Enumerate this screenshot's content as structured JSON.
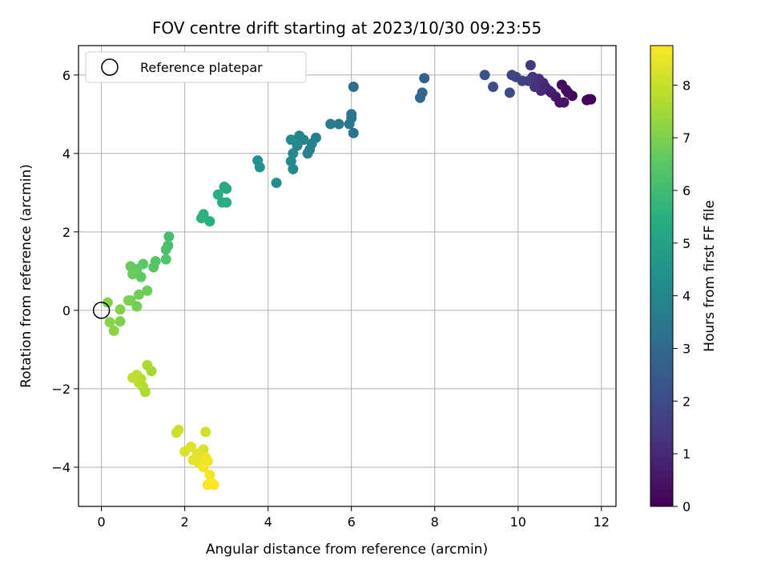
{
  "chart_data": {
    "type": "scatter",
    "title": "FOV centre drift starting at 2023/10/30 09:23:55",
    "xlabel": "Angular distance from reference (arcmin)",
    "ylabel": "Rotation from reference (arcmin)",
    "xlim": [
      -0.55,
      12.35
    ],
    "ylim": [
      -5.0,
      6.75
    ],
    "xticks": [
      "0",
      "2",
      "4",
      "6",
      "8",
      "10",
      "12"
    ],
    "yticks": [
      "−4",
      "−2",
      "0",
      "2",
      "4",
      "6"
    ],
    "grid": true,
    "legend": {
      "position": "top-left",
      "entries": [
        "Reference platepar"
      ]
    },
    "reference_point": {
      "x": 0,
      "y": 0
    },
    "colorbar": {
      "label": "Hours from first FF file",
      "colormap": "viridis",
      "range": [
        0,
        8.75
      ],
      "ticks": [
        "0",
        "1",
        "2",
        "3",
        "4",
        "5",
        "6",
        "7",
        "8"
      ]
    },
    "points": [
      [
        11.75,
        5.38,
        0.02
      ],
      [
        11.7,
        5.38,
        0.06
      ],
      [
        11.65,
        5.36,
        0.1
      ],
      [
        11.3,
        5.47,
        0.18
      ],
      [
        11.2,
        5.55,
        0.25
      ],
      [
        11.15,
        5.62,
        0.3
      ],
      [
        11.05,
        5.75,
        0.35
      ],
      [
        11.1,
        5.3,
        0.4
      ],
      [
        11.0,
        5.3,
        0.45
      ],
      [
        10.9,
        5.45,
        0.55
      ],
      [
        10.8,
        5.55,
        0.65
      ],
      [
        10.75,
        5.6,
        0.75
      ],
      [
        10.65,
        5.7,
        0.85
      ],
      [
        10.6,
        5.8,
        0.95
      ],
      [
        10.55,
        5.6,
        1.05
      ],
      [
        10.5,
        5.9,
        1.15
      ],
      [
        10.4,
        5.7,
        1.25
      ],
      [
        10.35,
        5.95,
        1.35
      ],
      [
        10.3,
        6.25,
        1.45
      ],
      [
        10.25,
        5.85,
        1.55
      ],
      [
        10.1,
        5.85,
        1.65
      ],
      [
        9.95,
        5.95,
        1.75
      ],
      [
        9.85,
        6.0,
        1.85
      ],
      [
        9.8,
        5.55,
        1.95
      ],
      [
        9.4,
        5.7,
        2.05
      ],
      [
        9.2,
        6.0,
        2.15
      ],
      [
        7.75,
        5.92,
        2.75
      ],
      [
        7.7,
        5.55,
        2.85
      ],
      [
        7.65,
        5.42,
        2.95
      ],
      [
        6.05,
        5.7,
        3.2
      ],
      [
        6.05,
        4.52,
        3.3
      ],
      [
        6.0,
        4.9,
        3.35
      ],
      [
        6.0,
        5.0,
        3.4
      ],
      [
        5.95,
        4.75,
        3.45
      ],
      [
        5.7,
        4.75,
        3.55
      ],
      [
        5.5,
        4.75,
        3.6
      ],
      [
        5.15,
        4.4,
        3.7
      ],
      [
        5.05,
        4.25,
        3.75
      ],
      [
        5.0,
        4.1,
        3.8
      ],
      [
        4.95,
        4.0,
        3.85
      ],
      [
        4.85,
        4.35,
        3.9
      ],
      [
        4.75,
        4.45,
        3.95
      ],
      [
        4.7,
        4.2,
        4.0
      ],
      [
        4.6,
        4.0,
        4.05
      ],
      [
        4.55,
        3.8,
        4.1
      ],
      [
        4.6,
        3.6,
        4.15
      ],
      [
        4.55,
        4.35,
        4.2
      ],
      [
        4.2,
        3.25,
        4.3
      ],
      [
        3.8,
        3.65,
        4.4
      ],
      [
        3.75,
        3.82,
        4.45
      ],
      [
        3.0,
        3.1,
        5.2
      ],
      [
        2.95,
        3.15,
        5.3
      ],
      [
        3.0,
        2.75,
        5.35
      ],
      [
        2.9,
        2.75,
        5.4
      ],
      [
        2.8,
        2.95,
        5.45
      ],
      [
        2.6,
        2.27,
        5.5
      ],
      [
        2.45,
        2.45,
        5.6
      ],
      [
        2.4,
        2.35,
        5.65
      ],
      [
        1.62,
        1.88,
        6.05
      ],
      [
        1.6,
        1.65,
        6.15
      ],
      [
        1.55,
        1.55,
        6.2
      ],
      [
        1.55,
        1.3,
        6.3
      ],
      [
        1.3,
        1.25,
        6.35
      ],
      [
        1.25,
        1.1,
        6.4
      ],
      [
        1.0,
        1.18,
        6.5
      ],
      [
        0.95,
        0.85,
        6.55
      ],
      [
        0.85,
        1.05,
        6.6
      ],
      [
        0.7,
        1.12,
        6.65
      ],
      [
        0.75,
        0.92,
        6.7
      ],
      [
        1.1,
        0.5,
        6.75
      ],
      [
        0.9,
        0.4,
        6.8
      ],
      [
        0.85,
        0.1,
        6.85
      ],
      [
        0.7,
        0.25,
        6.9
      ],
      [
        0.65,
        0.25,
        6.95
      ],
      [
        0.45,
        -0.28,
        7.0
      ],
      [
        0.45,
        0.02,
        7.05
      ],
      [
        0.15,
        0.2,
        7.1
      ],
      [
        0.2,
        -0.3,
        7.15
      ],
      [
        0.3,
        -0.52,
        7.2
      ],
      [
        1.2,
        -1.55,
        7.55
      ],
      [
        1.1,
        -1.4,
        7.6
      ],
      [
        1.05,
        -2.08,
        7.65
      ],
      [
        1.0,
        -1.95,
        7.7
      ],
      [
        0.95,
        -1.75,
        7.75
      ],
      [
        0.9,
        -1.85,
        7.8
      ],
      [
        0.85,
        -1.65,
        7.85
      ],
      [
        0.75,
        -1.72,
        7.9
      ],
      [
        1.85,
        -3.05,
        8.05
      ],
      [
        1.8,
        -3.12,
        8.1
      ],
      [
        2.5,
        -3.1,
        8.15
      ],
      [
        2.45,
        -3.55,
        8.2
      ],
      [
        2.0,
        -3.6,
        8.25
      ],
      [
        2.15,
        -3.48,
        8.3
      ],
      [
        2.3,
        -3.65,
        8.35
      ],
      [
        2.2,
        -3.82,
        8.4
      ],
      [
        2.35,
        -3.9,
        8.45
      ],
      [
        2.5,
        -3.75,
        8.5
      ],
      [
        2.55,
        -3.85,
        8.55
      ],
      [
        2.45,
        -4.0,
        8.6
      ],
      [
        2.6,
        -4.2,
        8.6
      ],
      [
        2.55,
        -4.45,
        8.65
      ],
      [
        2.65,
        -4.4,
        8.7
      ],
      [
        2.7,
        -4.45,
        8.75
      ]
    ]
  }
}
